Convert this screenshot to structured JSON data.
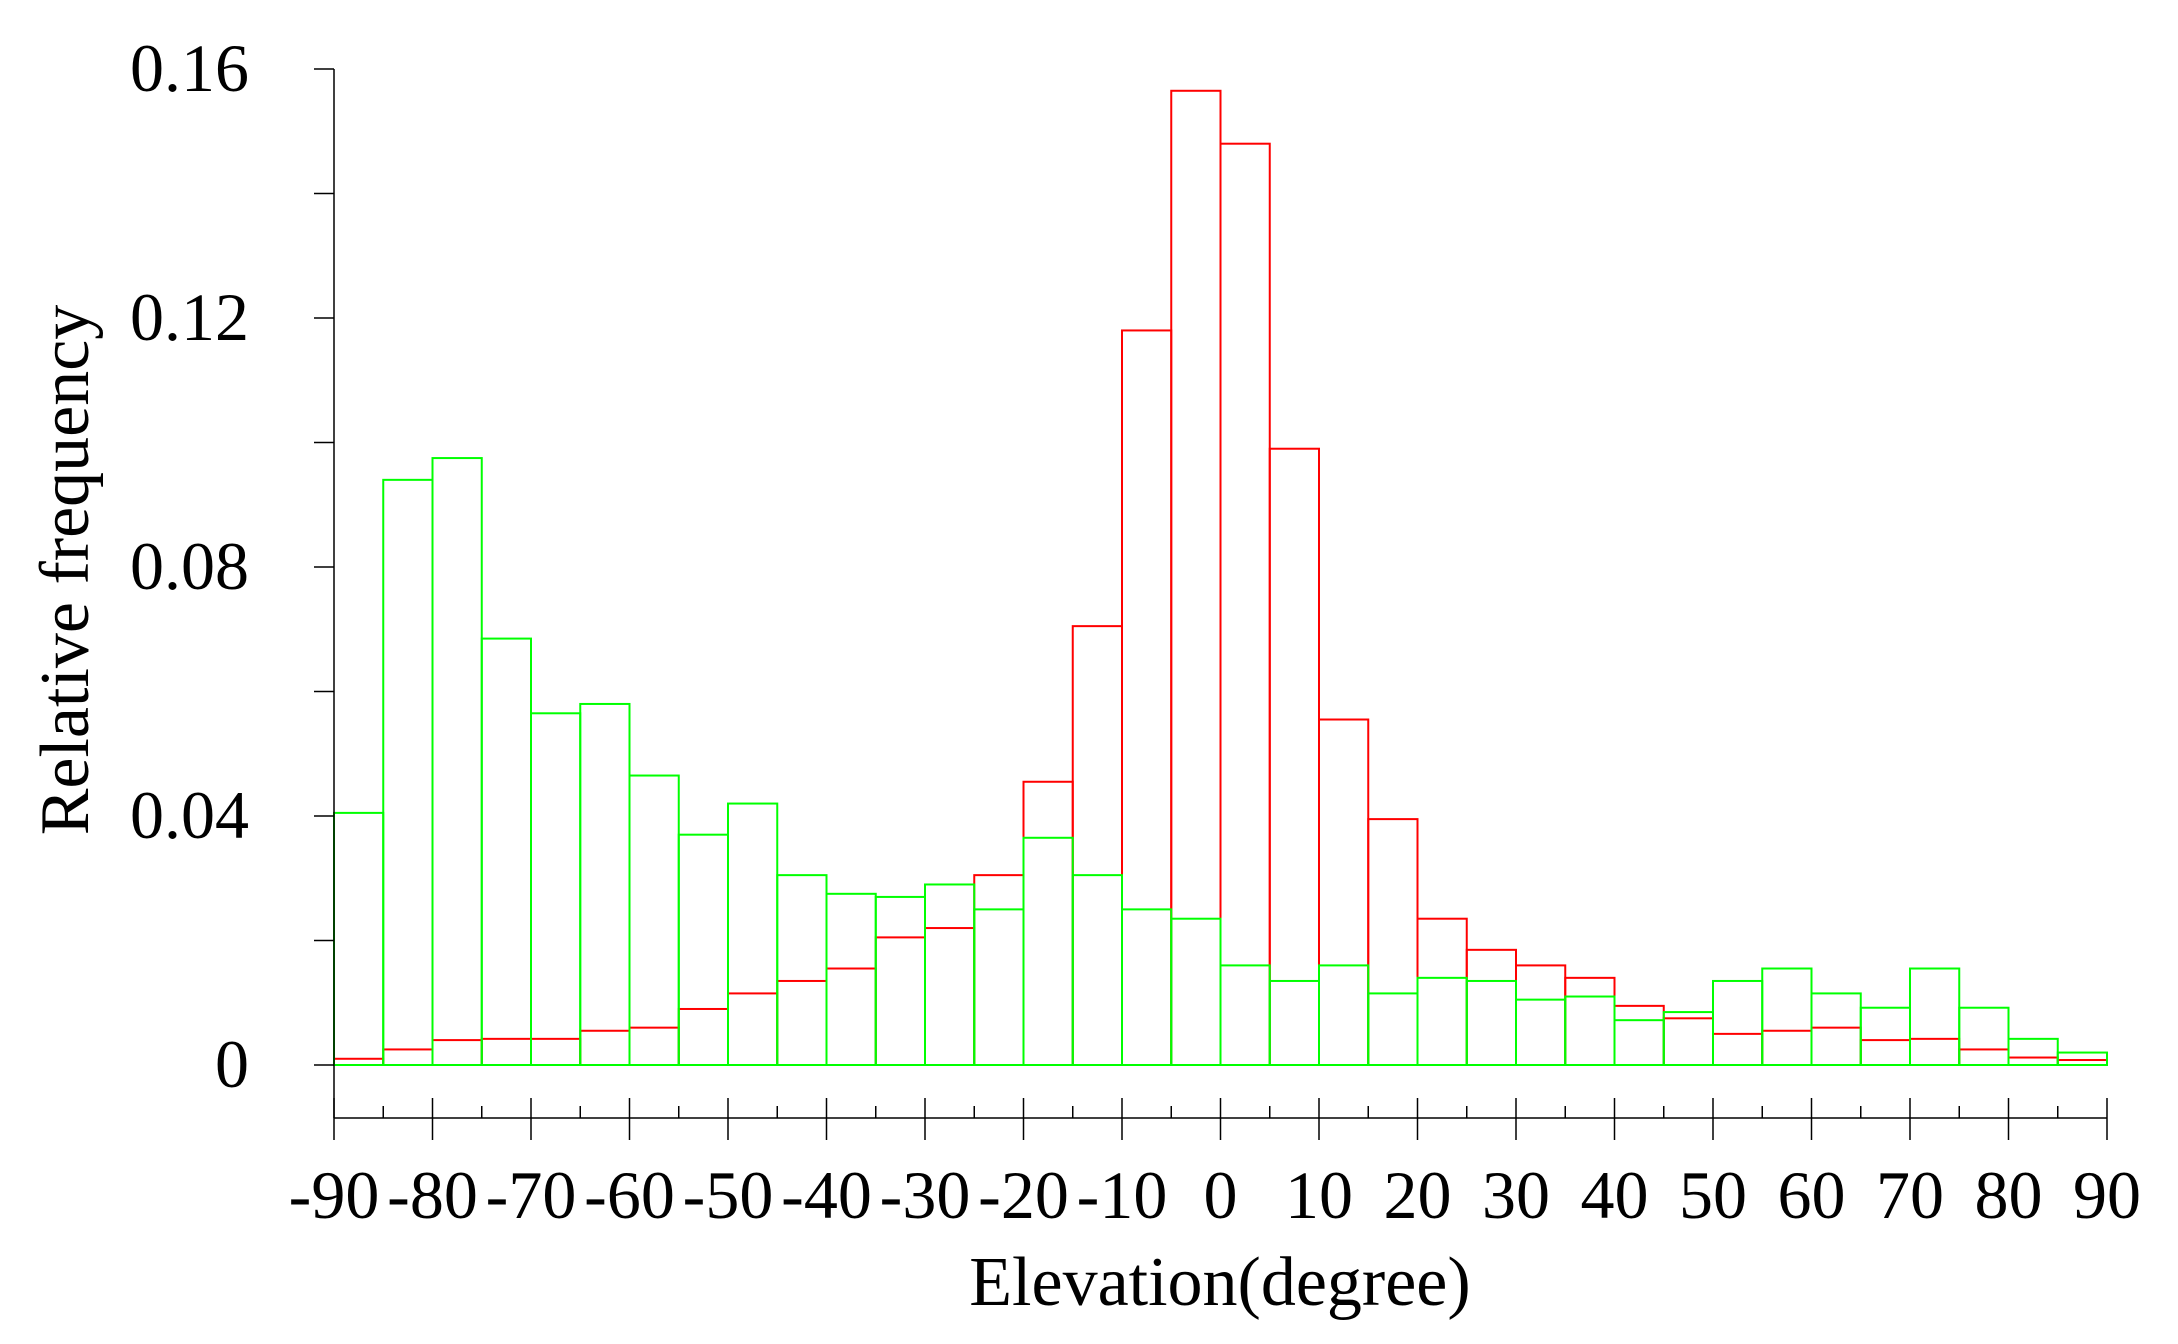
{
  "chart_data": {
    "type": "bar",
    "title": "",
    "xlabel": "Elevation(degree)",
    "ylabel": "Relative frequency",
    "xlim": [
      -90,
      90
    ],
    "ylim": [
      0,
      0.16
    ],
    "x_ticks": [
      -90,
      -80,
      -70,
      -60,
      -50,
      -40,
      -30,
      -20,
      -10,
      0,
      10,
      20,
      30,
      40,
      50,
      60,
      70,
      80,
      90
    ],
    "x_tick_labels": [
      "-90",
      "-80",
      "-70",
      "-60",
      "-50",
      "-40",
      "-30",
      "-20",
      "-10",
      "0",
      "10",
      "20",
      "30",
      "40",
      "50",
      "60",
      "70",
      "80",
      "90"
    ],
    "y_ticks": [
      0,
      0.04,
      0.08,
      0.12,
      0.16
    ],
    "y_tick_labels": [
      "0",
      "0.04",
      "0.08",
      "0.12",
      "0.16"
    ],
    "y_minor_step": 0.02,
    "grid": false,
    "bin_width": 5,
    "bin_edges": [
      -90,
      -85,
      -80,
      -75,
      -70,
      -65,
      -60,
      -55,
      -50,
      -45,
      -40,
      -35,
      -30,
      -25,
      -20,
      -15,
      -10,
      -5,
      0,
      5,
      10,
      15,
      20,
      25,
      30,
      35,
      40,
      45,
      50,
      55,
      60,
      65,
      70,
      75,
      80,
      85,
      90
    ],
    "series": [
      {
        "color": "#ff0000",
        "values": [
          0.001,
          0.0025,
          0.004,
          0.0042,
          0.0042,
          0.0055,
          0.006,
          0.009,
          0.0115,
          0.0135,
          0.0155,
          0.0205,
          0.022,
          0.0305,
          0.0455,
          0.0705,
          0.118,
          0.1565,
          0.148,
          0.099,
          0.0555,
          0.0395,
          0.0235,
          0.0185,
          0.016,
          0.014,
          0.0095,
          0.0075,
          0.005,
          0.0055,
          0.006,
          0.004,
          0.0042,
          0.0025,
          0.0012,
          0.0008
        ]
      },
      {
        "color": "#00ff00",
        "values": [
          0.0405,
          0.094,
          0.0975,
          0.0685,
          0.0565,
          0.058,
          0.0465,
          0.037,
          0.042,
          0.0305,
          0.0275,
          0.027,
          0.029,
          0.025,
          0.0365,
          0.0305,
          0.025,
          0.0235,
          0.016,
          0.0135,
          0.016,
          0.0115,
          0.014,
          0.0135,
          0.0105,
          0.011,
          0.0072,
          0.0085,
          0.0135,
          0.0155,
          0.0115,
          0.0092,
          0.0155,
          0.0092,
          0.0042,
          0.002
        ]
      }
    ]
  }
}
